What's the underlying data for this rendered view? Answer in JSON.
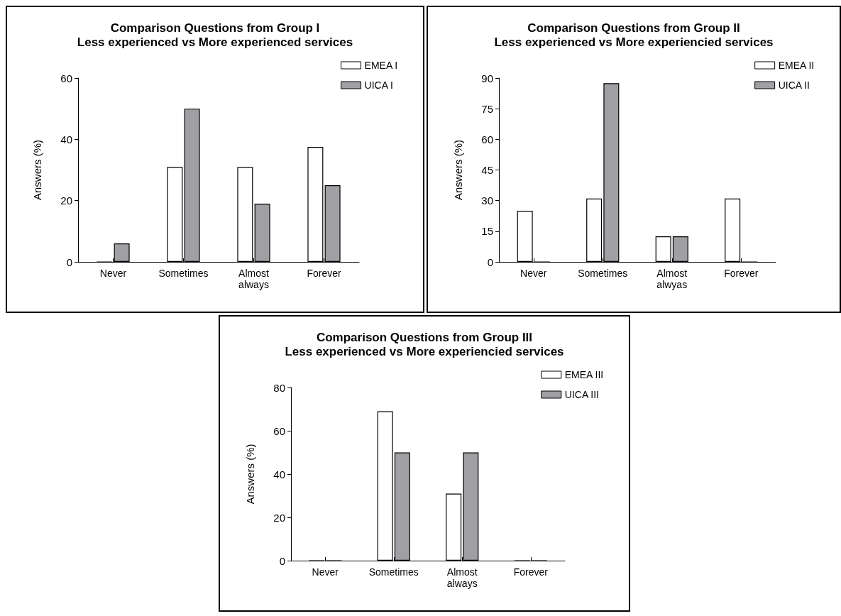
{
  "chart_data": [
    {
      "type": "bar",
      "title": "Comparison Questions from Group I\nLess experienced vs More experienced services",
      "ylabel": "Answers (%)",
      "categories": [
        "Never",
        "Sometimes",
        "Almost\nalways",
        "Forever"
      ],
      "series": [
        {
          "name": "EMEA I",
          "color": "#ffffff",
          "values": [
            0,
            31,
            31,
            37.5
          ]
        },
        {
          "name": "UICA I",
          "color": "#a0a0a4",
          "values": [
            6,
            50,
            19,
            25
          ]
        }
      ],
      "ylim": [
        0,
        60
      ],
      "yticks": [
        0,
        20,
        40,
        60
      ],
      "grid": false,
      "legend": "top right"
    },
    {
      "type": "bar",
      "title": "Comparison Questions from Group II\nLess experienced vs More experiencied services",
      "ylabel": "Answers (%)",
      "categories": [
        "Never",
        "Sometimes",
        "Almost\nalwyas",
        "Forever"
      ],
      "series": [
        {
          "name": "EMEA II",
          "color": "#ffffff",
          "values": [
            25,
            31,
            12.5,
            31
          ]
        },
        {
          "name": "UICA II",
          "color": "#a0a0a4",
          "values": [
            0,
            87.5,
            12.5,
            0
          ]
        }
      ],
      "ylim": [
        0,
        90
      ],
      "yticks": [
        0,
        15,
        30,
        45,
        60,
        75,
        90
      ],
      "grid": false,
      "legend": "top right"
    },
    {
      "type": "bar",
      "title": "Comparison Questions from Group III\nLess experienced vs More experiencied services",
      "ylabel": "Answers (%)",
      "categories": [
        "Never",
        "Sometimes",
        "Almost\nalways",
        "Forever"
      ],
      "series": [
        {
          "name": "EMEA III",
          "color": "#ffffff",
          "values": [
            0,
            69,
            31,
            0
          ]
        },
        {
          "name": "UICA III",
          "color": "#a0a0a4",
          "values": [
            0,
            50,
            50,
            0
          ]
        }
      ],
      "ylim": [
        0,
        80
      ],
      "yticks": [
        0,
        20,
        40,
        60,
        80
      ],
      "grid": false,
      "legend": "top right"
    }
  ]
}
